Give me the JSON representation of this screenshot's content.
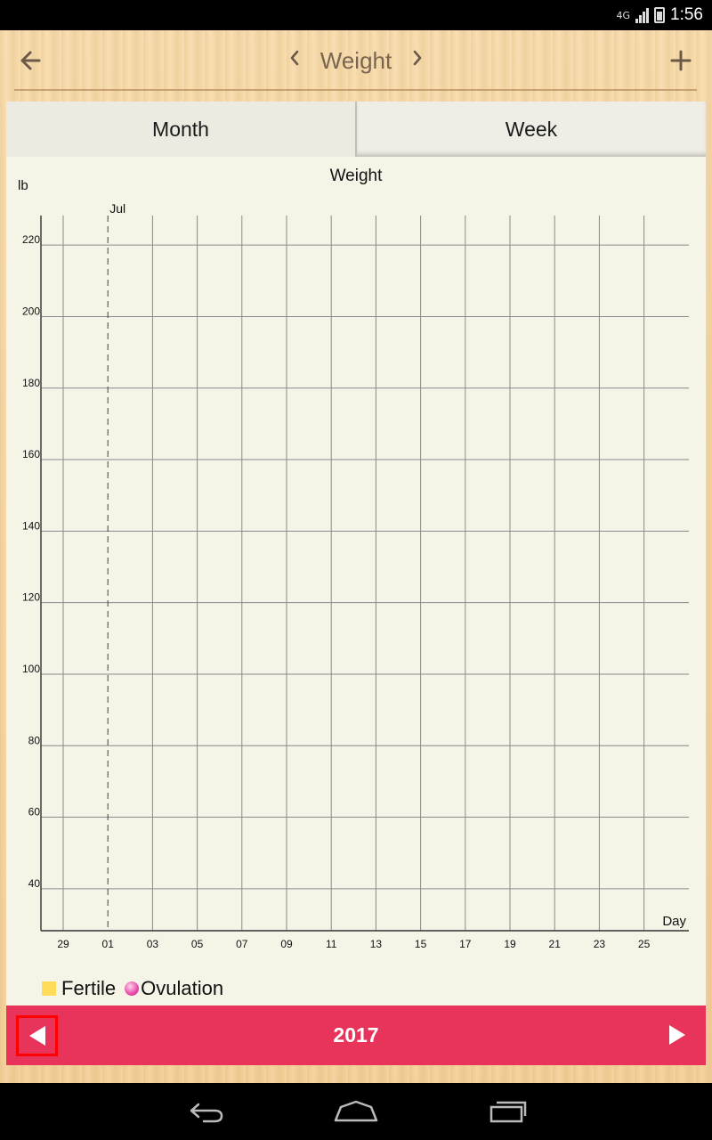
{
  "status_bar": {
    "network": "4G",
    "time": "1:56"
  },
  "header": {
    "title": "Weight",
    "back_icon": "arrow-left-icon",
    "add_icon": "plus-icon",
    "prev_icon": "chevron-left-icon",
    "next_icon": "chevron-right-icon"
  },
  "tabs": [
    {
      "label": "Month",
      "selected": true
    },
    {
      "label": "Week",
      "selected": false
    }
  ],
  "chart_data": {
    "type": "line",
    "title": "Weight",
    "ylabel": "lb",
    "xlabel": "Day",
    "ylim": [
      30,
      230
    ],
    "y_ticks": [
      40,
      60,
      80,
      100,
      120,
      140,
      160,
      180,
      200,
      220
    ],
    "x_ticks": [
      "29",
      "01",
      "03",
      "05",
      "07",
      "09",
      "11",
      "13",
      "15",
      "17",
      "19",
      "21",
      "23",
      "25"
    ],
    "month_markers": [
      {
        "label": "Jul",
        "at": "01"
      }
    ],
    "series": [],
    "grid": true
  },
  "legend": [
    {
      "label": "Fertile",
      "color": "#ffdc5a",
      "icon": "square"
    },
    {
      "label": "Ovulation",
      "color": "#e64aa8",
      "icon": "dot"
    }
  ],
  "year_bar": {
    "year": "2017",
    "prev_icon": "triangle-left-icon",
    "next_icon": "triangle-right-icon",
    "color": "#e8335b"
  },
  "nav": {
    "back_icon": "nav-back-icon",
    "home_icon": "nav-home-icon",
    "recents_icon": "nav-recents-icon"
  }
}
